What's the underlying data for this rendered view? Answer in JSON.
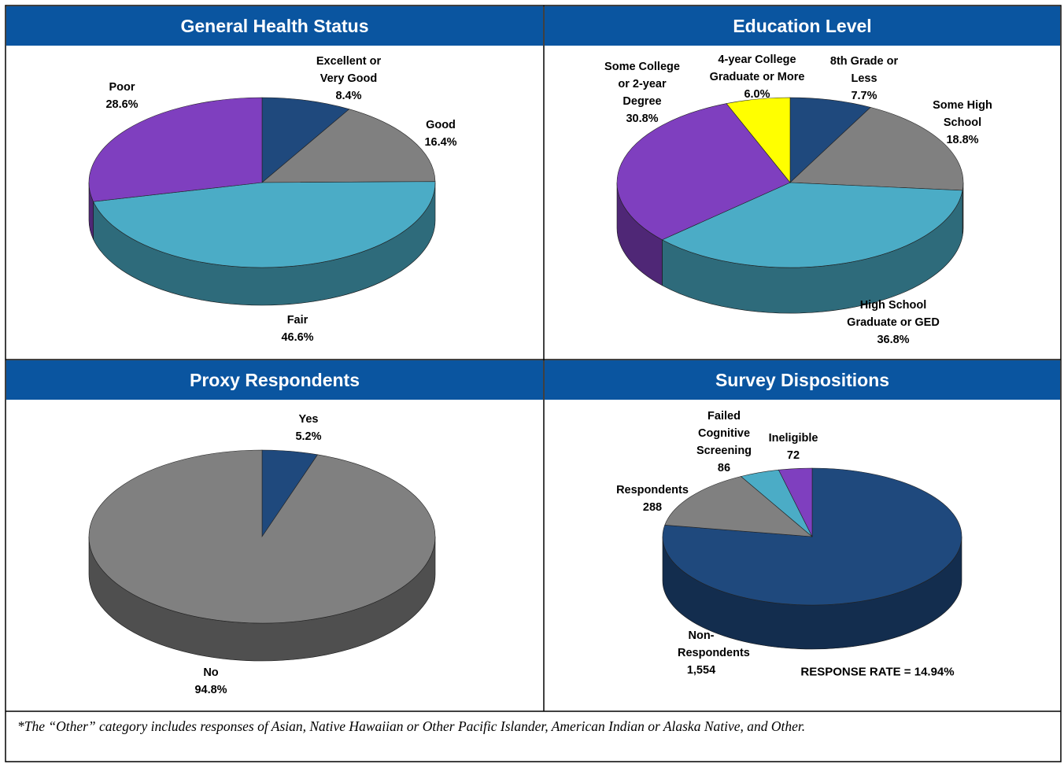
{
  "chart_data": [
    {
      "type": "pie",
      "title": "General Health Status",
      "categories": [
        "Excellent or Very Good",
        "Good",
        "Fair",
        "Poor"
      ],
      "values": [
        8.4,
        16.4,
        46.6,
        28.6
      ],
      "value_labels": [
        "8.4%",
        "16.4%",
        "46.6%",
        "28.6%"
      ],
      "colors": [
        "#1f497d",
        "#808080",
        "#4bacc6",
        "#7f3fbf"
      ]
    },
    {
      "type": "pie",
      "title": "Education Level",
      "categories": [
        "8th Grade or Less",
        "Some High School",
        "High School Graduate or GED",
        "Some College or 2-year Degree",
        "4-year College Graduate or More"
      ],
      "values": [
        7.7,
        18.8,
        36.8,
        30.8,
        6.0
      ],
      "value_labels": [
        "7.7%",
        "18.8%",
        "36.8%",
        "30.8%",
        "6.0%"
      ],
      "colors": [
        "#1f497d",
        "#808080",
        "#4bacc6",
        "#7f3fbf",
        "#ffff00"
      ]
    },
    {
      "type": "pie",
      "title": "Proxy Respondents",
      "categories": [
        "Yes",
        "No"
      ],
      "values": [
        5.2,
        94.8
      ],
      "value_labels": [
        "5.2%",
        "94.8%"
      ],
      "colors": [
        "#1f497d",
        "#808080"
      ]
    },
    {
      "type": "pie",
      "title": "Survey Dispositions",
      "categories": [
        "Non-Respondents",
        "Respondents",
        "Failed Cognitive Screening",
        "Ineligible"
      ],
      "values": [
        1554,
        288,
        86,
        72
      ],
      "value_labels": [
        "1,554",
        "288",
        "86",
        "72"
      ],
      "colors": [
        "#1f497d",
        "#808080",
        "#4bacc6",
        "#7f3fbf"
      ],
      "annotation": "RESPONSE RATE = 14.94%"
    }
  ],
  "footnote": "*The “Other” category includes responses of Asian, Native Hawaiian or Other Pacific Islander, American Indian or Alaska Native, and Other."
}
